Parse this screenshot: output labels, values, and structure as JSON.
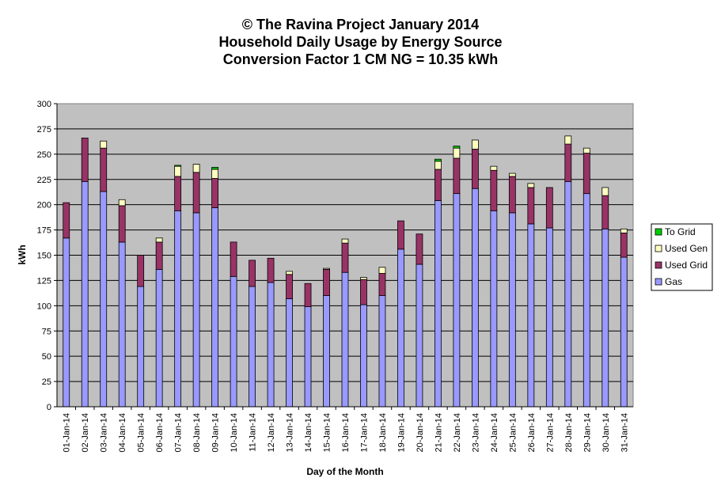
{
  "chart_data": {
    "type": "bar",
    "stacked": true,
    "title": [
      "© The Ravina Project January 2014",
      "Household Daily Usage by Energy Source",
      "Conversion Factor 1 CM NG = 10.35 kWh"
    ],
    "xlabel": "Day of the Month",
    "ylabel": "kWh",
    "ylim": [
      0,
      300
    ],
    "ytick_step": 25,
    "grid": true,
    "legend_position": "right",
    "categories": [
      "01-Jan-14",
      "02-Jan-14",
      "03-Jan-14",
      "04-Jan-14",
      "05-Jan-14",
      "06-Jan-14",
      "07-Jan-14",
      "08-Jan-14",
      "09-Jan-14",
      "10-Jan-14",
      "11-Jan-14",
      "12-Jan-14",
      "13-Jan-14",
      "14-Jan-14",
      "15-Jan-14",
      "16-Jan-14",
      "17-Jan-14",
      "18-Jan-14",
      "19-Jan-14",
      "20-Jan-14",
      "21-Jan-14",
      "22-Jan-14",
      "23-Jan-14",
      "24-Jan-14",
      "25-Jan-14",
      "26-Jan-14",
      "27-Jan-14",
      "28-Jan-14",
      "29-Jan-14",
      "30-Jan-14",
      "31-Jan-14"
    ],
    "series": [
      {
        "name": "Gas",
        "color": "#9999FF",
        "values": [
          167,
          223,
          213,
          163,
          119,
          136,
          194,
          192,
          197,
          129,
          119,
          123,
          107,
          99,
          110,
          133,
          101,
          110,
          156,
          141,
          204,
          211,
          216,
          194,
          192,
          181,
          177,
          223,
          211,
          176,
          148
        ]
      },
      {
        "name": "Used Grid",
        "color": "#993366",
        "values": [
          35,
          43,
          43,
          36,
          31,
          27,
          34,
          40,
          29,
          34,
          26,
          24,
          24,
          23,
          26,
          29,
          25,
          22,
          28,
          30,
          31,
          35,
          39,
          40,
          36,
          36,
          40,
          37,
          40,
          33,
          24
        ]
      },
      {
        "name": "Used Gen",
        "color": "#FFFFC0",
        "values": [
          0,
          0,
          7,
          6,
          0,
          4,
          10,
          8,
          9,
          0,
          0,
          0,
          3,
          0,
          1,
          4,
          2,
          6,
          0,
          0,
          8,
          10,
          9,
          4,
          3,
          4,
          0,
          8,
          5,
          8,
          4
        ]
      },
      {
        "name": "To Grid",
        "color": "#00CC00",
        "values": [
          0,
          0,
          0,
          0,
          0,
          0,
          1,
          0,
          2,
          0,
          0,
          0,
          0,
          0,
          0,
          0,
          0,
          0,
          0,
          0,
          2,
          2,
          0,
          0,
          0,
          0,
          0,
          0,
          0,
          0,
          0
        ]
      }
    ]
  }
}
